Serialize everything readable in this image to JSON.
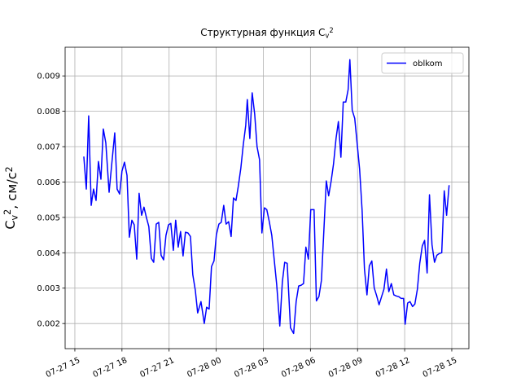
{
  "chart_data": {
    "type": "line",
    "title": [
      {
        "text": "Структурная функция C"
      },
      {
        "text": "v",
        "style": "sub"
      },
      {
        "text": "2",
        "style": "sup"
      }
    ],
    "ylabel": [
      {
        "text": "C"
      },
      {
        "text": "v",
        "style": "sub"
      },
      {
        "text": "2",
        "style": "sup"
      },
      {
        "text": ", см/с"
      },
      {
        "text": "2",
        "style": "sup"
      }
    ],
    "x": [
      15.57,
      15.73,
      15.88,
      16.04,
      16.19,
      16.35,
      16.5,
      16.66,
      16.81,
      16.97,
      17.18,
      17.33,
      17.54,
      17.69,
      17.85,
      18.0,
      18.16,
      18.32,
      18.47,
      18.63,
      18.78,
      18.94,
      19.09,
      19.25,
      19.4,
      19.56,
      19.71,
      19.87,
      20.02,
      20.18,
      20.34,
      20.49,
      20.65,
      20.8,
      20.96,
      21.11,
      21.27,
      21.42,
      21.58,
      21.73,
      21.89,
      22.04,
      22.2,
      22.36,
      22.51,
      22.67,
      22.82,
      23.03,
      23.24,
      23.39,
      23.55,
      23.7,
      23.86,
      24.01,
      24.17,
      24.32,
      24.48,
      24.63,
      24.79,
      24.95,
      25.1,
      25.26,
      25.41,
      25.57,
      25.72,
      25.88,
      25.98,
      26.14,
      26.29,
      26.45,
      26.6,
      26.76,
      26.91,
      27.07,
      27.22,
      27.38,
      27.54,
      27.69,
      27.85,
      28.05,
      28.21,
      28.36,
      28.52,
      28.73,
      28.93,
      29.09,
      29.25,
      29.4,
      29.56,
      29.71,
      29.87,
      30.02,
      30.23,
      30.38,
      30.54,
      30.7,
      30.85,
      31.01,
      31.16,
      31.32,
      31.47,
      31.63,
      31.78,
      31.94,
      32.09,
      32.25,
      32.4,
      32.51,
      32.66,
      32.82,
      32.97,
      33.13,
      33.29,
      33.44,
      33.6,
      33.75,
      33.91,
      34.06,
      34.22,
      34.37,
      34.53,
      34.68,
      34.84,
      34.99,
      35.15,
      35.31,
      35.46,
      35.62,
      35.77,
      35.93,
      36.03,
      36.19,
      36.34,
      36.5,
      36.65,
      36.81,
      36.96,
      37.12,
      37.27,
      37.43,
      37.58,
      37.74,
      37.9,
      38.05,
      38.21,
      38.36,
      38.52,
      38.67,
      38.83
    ],
    "series": [
      {
        "name": "oblkom",
        "color": "#0000ff",
        "values": [
          0.00672,
          0.0058,
          0.00787,
          0.00534,
          0.0058,
          0.00548,
          0.00658,
          0.00608,
          0.0075,
          0.00711,
          0.00571,
          0.00642,
          0.00739,
          0.0058,
          0.00566,
          0.00631,
          0.00656,
          0.00619,
          0.00444,
          0.00492,
          0.00479,
          0.00382,
          0.00568,
          0.00506,
          0.00529,
          0.00499,
          0.00474,
          0.00384,
          0.00373,
          0.00481,
          0.00486,
          0.00393,
          0.0038,
          0.00449,
          0.00479,
          0.00483,
          0.00407,
          0.00492,
          0.00416,
          0.0046,
          0.00391,
          0.00458,
          0.00456,
          0.00446,
          0.00338,
          0.00294,
          0.0023,
          0.00262,
          0.002,
          0.00246,
          0.00241,
          0.00361,
          0.00377,
          0.00451,
          0.00481,
          0.00486,
          0.00534,
          0.00481,
          0.00488,
          0.00446,
          0.00555,
          0.00548,
          0.00589,
          0.0064,
          0.00704,
          0.0076,
          0.00833,
          0.00723,
          0.00852,
          0.00792,
          0.007,
          0.00663,
          0.00456,
          0.00527,
          0.00522,
          0.00488,
          0.00449,
          0.00382,
          0.00311,
          0.00193,
          0.00317,
          0.00373,
          0.0037,
          0.00188,
          0.00172,
          0.00262,
          0.00306,
          0.00308,
          0.00313,
          0.00416,
          0.00382,
          0.00522,
          0.00522,
          0.00264,
          0.00276,
          0.00322,
          0.00458,
          0.00603,
          0.00561,
          0.00603,
          0.00651,
          0.00723,
          0.00771,
          0.0067,
          0.00826,
          0.00826,
          0.00861,
          0.00946,
          0.00803,
          0.0078,
          0.00711,
          0.00637,
          0.0052,
          0.00354,
          0.00281,
          0.00363,
          0.00377,
          0.00301,
          0.00278,
          0.00253,
          0.00276,
          0.00297,
          0.00354,
          0.0029,
          0.00313,
          0.00281,
          0.00278,
          0.00276,
          0.00271,
          0.00271,
          0.00198,
          0.00258,
          0.00262,
          0.00248,
          0.00255,
          0.00297,
          0.0037,
          0.00419,
          0.00435,
          0.00343,
          0.00564,
          0.00423,
          0.00373,
          0.00393,
          0.00398,
          0.004,
          0.00575,
          0.00506,
          0.00591
        ]
      }
    ],
    "xlim": [
      14.38,
      40.09
    ],
    "ylim": [
      0.00129,
      0.00981
    ],
    "xticks": [
      {
        "value": 15,
        "label": "07-27 15"
      },
      {
        "value": 18,
        "label": "07-27 18"
      },
      {
        "value": 21,
        "label": "07-27 21"
      },
      {
        "value": 24,
        "label": "07-28 00"
      },
      {
        "value": 27,
        "label": "07-28 03"
      },
      {
        "value": 30,
        "label": "07-28 06"
      },
      {
        "value": 33,
        "label": "07-28 09"
      },
      {
        "value": 36,
        "label": "07-28 12"
      },
      {
        "value": 39,
        "label": "07-28 15"
      }
    ],
    "yticks": [
      0.002,
      0.003,
      0.004,
      0.005,
      0.006,
      0.007,
      0.008,
      0.009
    ],
    "grid": true,
    "legend": "upper right"
  }
}
